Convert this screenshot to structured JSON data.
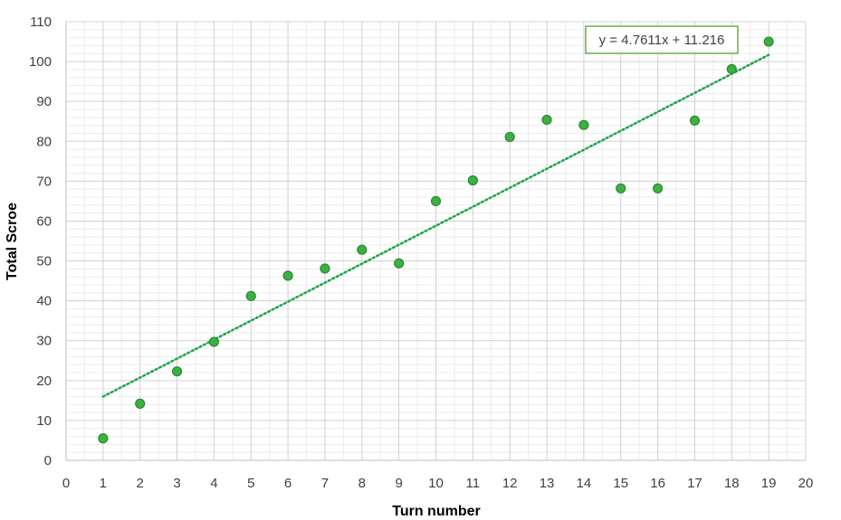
{
  "chart_data": {
    "type": "scatter",
    "xlabel": "Turn number",
    "ylabel": "Total Scroe",
    "xlim": [
      0,
      20
    ],
    "ylim": [
      0,
      110
    ],
    "x_ticks": [
      "0",
      "1",
      "2",
      "3",
      "4",
      "5",
      "6",
      "7",
      "8",
      "9",
      "10",
      "11",
      "12",
      "13",
      "14",
      "15",
      "16",
      "17",
      "18",
      "19",
      "20"
    ],
    "y_ticks": [
      "0",
      "10",
      "20",
      "30",
      "40",
      "50",
      "60",
      "70",
      "80",
      "90",
      "100",
      "110"
    ],
    "grid": "major and minor",
    "series": [
      {
        "x": [
          1,
          2,
          3,
          4,
          5,
          6,
          7,
          8,
          9,
          10,
          11,
          12,
          13,
          14,
          15,
          16,
          17,
          18,
          19
        ],
        "y": [
          5.5,
          14.2,
          22.3,
          29.7,
          41.2,
          46.3,
          48.1,
          52.8,
          49.4,
          65.0,
          70.2,
          81.1,
          85.4,
          84.1,
          68.2,
          68.2,
          85.2,
          98.1,
          105.0
        ]
      }
    ],
    "trendline": {
      "type": "linear",
      "slope": 4.7611,
      "intercept": 11.216,
      "x_range": [
        1,
        19
      ],
      "equation_label": "y = 4.7611x + 11.216"
    },
    "colors": {
      "marker_fill": "#3cb043",
      "marker_stroke": "#2a8a2f",
      "trendline": "#1aa64a",
      "equation_border": "#70ad47",
      "major_grid": "#d0d0d0",
      "minor_grid": "#ececec"
    }
  }
}
